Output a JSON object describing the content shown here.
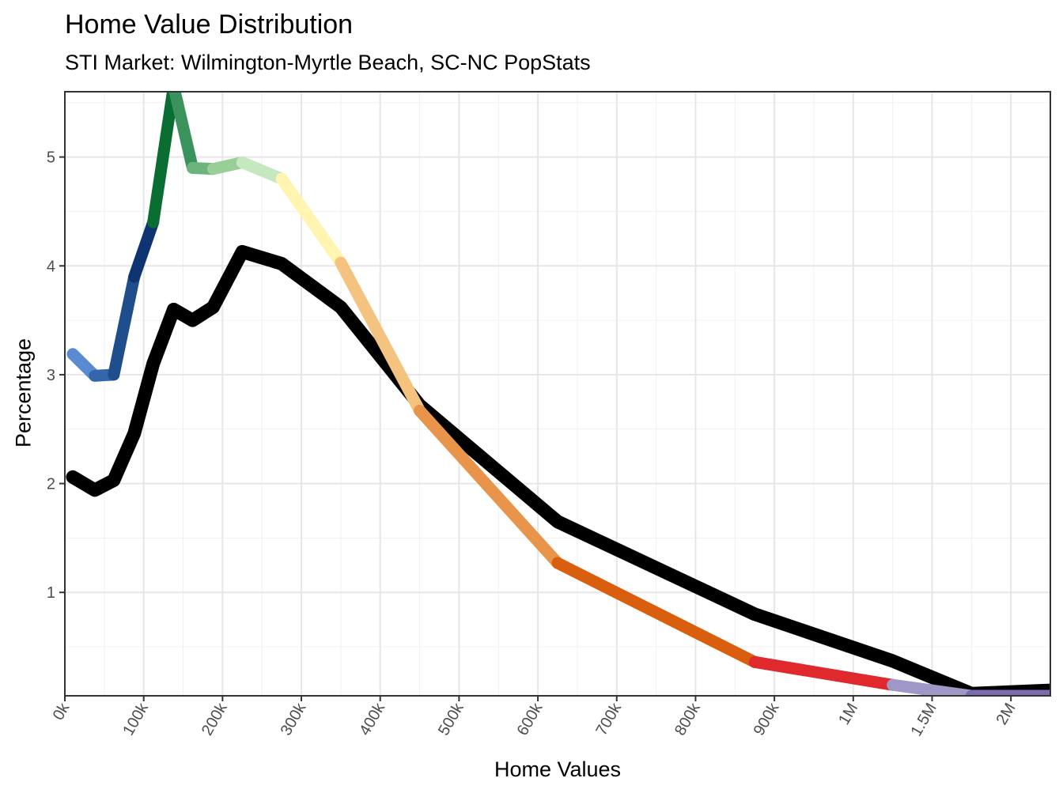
{
  "chart_data": {
    "type": "line",
    "title": "Home Value Distribution",
    "subtitle": "STI Market: Wilmington-Myrtle Beach, SC-NC PopStats",
    "xlabel": "Home Values",
    "ylabel": "Percentage",
    "x_ticks": [
      "0k",
      "100k",
      "200k",
      "300k",
      "400k",
      "500k",
      "600k",
      "700k",
      "800k",
      "900k",
      "1M",
      "1.5M",
      "2M"
    ],
    "y_ticks": [
      1,
      2,
      3,
      4,
      5
    ],
    "ylim": [
      0.05,
      5.6
    ],
    "grid": true,
    "legend": "none",
    "x_index": [
      0.1,
      0.38,
      0.62,
      0.88,
      1.12,
      1.38,
      1.62,
      1.88,
      2.25,
      2.75,
      3.5,
      4.5,
      6.25,
      8.75,
      10.5,
      11.5,
      12.5
    ],
    "series": [
      {
        "values": [
          3.19,
          2.99,
          3.0,
          3.9,
          4.4,
          5.65,
          4.9,
          4.89,
          4.95,
          4.8,
          4.03,
          2.67,
          1.27,
          0.36,
          0.15,
          0.05,
          0.05
        ],
        "colors": [
          "#5a8ad0",
          "#3466ac",
          "#1e4e8c",
          "#0e3572",
          "#0a6e32",
          "#3a925c",
          "#6cb37e",
          "#97cf97",
          "#c6e8c0",
          "#fff4b0",
          "#f3c37f",
          "#e8944a",
          "#d95f0e",
          "#e0292c",
          "#9f97c6",
          "#7b6cb0",
          "#5a3f99"
        ]
      },
      {
        "values": [
          2.06,
          1.94,
          2.03,
          2.46,
          3.1,
          3.6,
          3.5,
          3.62,
          4.13,
          4.02,
          3.62,
          2.72,
          1.65,
          0.8,
          0.37,
          0.07,
          0.1
        ],
        "color": "#000000"
      }
    ]
  }
}
